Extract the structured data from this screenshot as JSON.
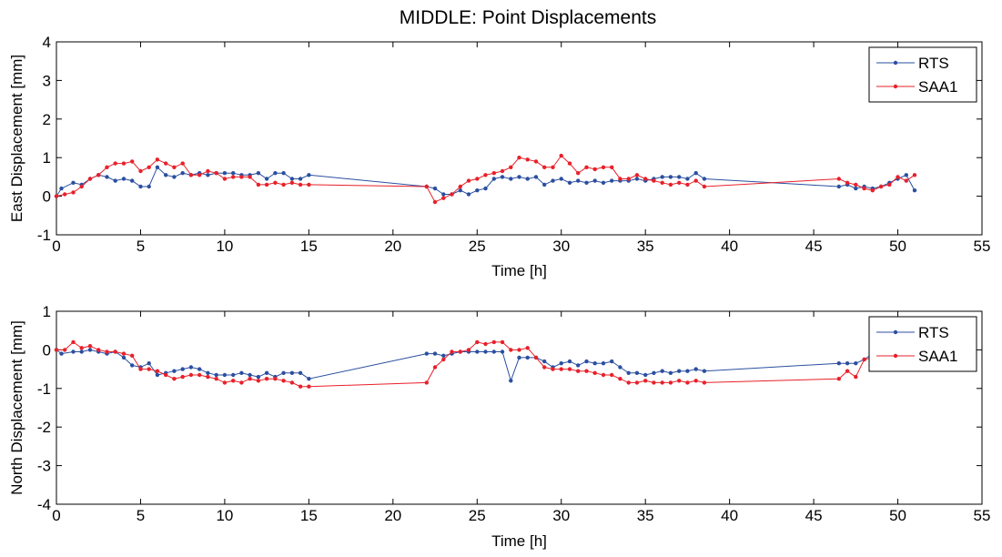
{
  "title": "MIDDLE: Point Displacements",
  "colors": {
    "RTS": "#2b4fa0",
    "SAA1": "#e8202a"
  },
  "chart_data": [
    {
      "type": "line",
      "xlabel": "Time [h]",
      "ylabel": "East Displacement [mm]",
      "xlim": [
        0,
        55
      ],
      "ylim": [
        -1,
        4
      ],
      "xticks": [
        "0",
        "5",
        "10",
        "15",
        "20",
        "25",
        "30",
        "35",
        "40",
        "45",
        "50",
        "55"
      ],
      "yticks": [
        "-1",
        "0",
        "1",
        "2",
        "3",
        "4"
      ],
      "grid": false,
      "legend_position": "top-right",
      "series": [
        {
          "name": "RTS",
          "x": [
            0,
            0.3,
            1,
            1.5,
            2,
            2.5,
            3,
            3.5,
            4,
            4.5,
            5,
            5.5,
            6,
            6.5,
            7,
            7.5,
            8,
            8.5,
            9,
            9.5,
            10,
            10.5,
            11,
            11.5,
            12,
            12.5,
            13,
            13.5,
            14,
            14.5,
            15,
            22,
            22.5,
            23,
            23.5,
            24,
            24.5,
            25,
            25.5,
            26,
            26.5,
            27,
            27.5,
            28,
            28.5,
            29,
            29.5,
            30,
            30.5,
            31,
            31.5,
            32,
            32.5,
            33,
            33.5,
            34,
            34.5,
            35,
            35.5,
            36,
            36.5,
            37,
            37.5,
            38,
            38.5,
            46.5,
            47,
            47.5,
            48,
            48.5,
            49,
            49.5,
            50,
            50.5,
            51
          ],
          "y": [
            0,
            0.2,
            0.35,
            0.3,
            0.45,
            0.55,
            0.5,
            0.4,
            0.45,
            0.4,
            0.25,
            0.25,
            0.75,
            0.55,
            0.5,
            0.6,
            0.55,
            0.6,
            0.55,
            0.6,
            0.6,
            0.6,
            0.55,
            0.55,
            0.6,
            0.45,
            0.6,
            0.6,
            0.45,
            0.45,
            0.55,
            0.25,
            0.2,
            0.05,
            0.05,
            0.15,
            0.05,
            0.15,
            0.2,
            0.45,
            0.5,
            0.45,
            0.5,
            0.45,
            0.5,
            0.3,
            0.4,
            0.45,
            0.35,
            0.4,
            0.35,
            0.4,
            0.35,
            0.4,
            0.4,
            0.4,
            0.45,
            0.4,
            0.45,
            0.5,
            0.5,
            0.5,
            0.45,
            0.6,
            0.45,
            0.25,
            0.3,
            0.2,
            0.25,
            0.2,
            0.25,
            0.35,
            0.45,
            0.55,
            0.15
          ]
        },
        {
          "name": "SAA1",
          "x": [
            0,
            0.5,
            1,
            1.5,
            2,
            2.5,
            3,
            3.5,
            4,
            4.5,
            5,
            5.5,
            6,
            6.5,
            7,
            7.5,
            8,
            8.5,
            9,
            9.5,
            10,
            10.5,
            11,
            11.5,
            12,
            12.5,
            13,
            13.5,
            14,
            14.5,
            15,
            22,
            22.5,
            23,
            23.5,
            24,
            24.5,
            25,
            25.5,
            26,
            26.5,
            27,
            27.5,
            28,
            28.5,
            29,
            29.5,
            30,
            30.5,
            31,
            31.5,
            32,
            32.5,
            33,
            33.5,
            34,
            34.5,
            35,
            35.5,
            36,
            36.5,
            37,
            37.5,
            38,
            38.5,
            46.5,
            47,
            47.5,
            48,
            48.5,
            49,
            49.5,
            50,
            50.5,
            51
          ],
          "y": [
            0,
            0.05,
            0.1,
            0.25,
            0.45,
            0.55,
            0.75,
            0.85,
            0.85,
            0.9,
            0.65,
            0.75,
            0.95,
            0.85,
            0.75,
            0.85,
            0.55,
            0.55,
            0.65,
            0.6,
            0.45,
            0.5,
            0.5,
            0.5,
            0.3,
            0.3,
            0.35,
            0.3,
            0.35,
            0.3,
            0.3,
            0.25,
            -0.15,
            -0.05,
            0.05,
            0.25,
            0.4,
            0.45,
            0.55,
            0.6,
            0.65,
            0.75,
            1.0,
            0.95,
            0.9,
            0.75,
            0.75,
            1.05,
            0.85,
            0.6,
            0.75,
            0.7,
            0.75,
            0.75,
            0.45,
            0.45,
            0.55,
            0.45,
            0.4,
            0.35,
            0.3,
            0.35,
            0.3,
            0.4,
            0.25,
            0.45,
            0.35,
            0.3,
            0.2,
            0.15,
            0.25,
            0.3,
            0.5,
            0.4,
            0.55
          ]
        }
      ]
    },
    {
      "type": "line",
      "xlabel": "Time [h]",
      "ylabel": "North Displacement [mm]",
      "xlim": [
        0,
        55
      ],
      "ylim": [
        -4,
        1
      ],
      "xticks": [
        "0",
        "5",
        "10",
        "15",
        "20",
        "25",
        "30",
        "35",
        "40",
        "45",
        "50",
        "55"
      ],
      "yticks": [
        "-4",
        "-3",
        "-2",
        "-1",
        "0",
        "1"
      ],
      "grid": false,
      "legend_position": "top-right",
      "series": [
        {
          "name": "RTS",
          "x": [
            0,
            0.3,
            1,
            1.5,
            2,
            2.5,
            3,
            3.5,
            4,
            4.5,
            5,
            5.5,
            6,
            6.5,
            7,
            7.5,
            8,
            8.5,
            9,
            9.5,
            10,
            10.5,
            11,
            11.5,
            12,
            12.5,
            13,
            13.5,
            14,
            14.5,
            15,
            22,
            22.5,
            23,
            23.5,
            24,
            24.5,
            25,
            25.5,
            26,
            26.5,
            27,
            27.5,
            28,
            28.5,
            29,
            29.5,
            30,
            30.5,
            31,
            31.5,
            32,
            32.5,
            33,
            33.5,
            34,
            34.5,
            35,
            35.5,
            36,
            36.5,
            37,
            37.5,
            38,
            38.5,
            46.5,
            47,
            47.5,
            48,
            48.5
          ],
          "y": [
            0,
            -0.1,
            -0.05,
            -0.05,
            0,
            -0.05,
            -0.1,
            -0.05,
            -0.2,
            -0.4,
            -0.45,
            -0.35,
            -0.65,
            -0.6,
            -0.55,
            -0.5,
            -0.45,
            -0.5,
            -0.6,
            -0.65,
            -0.65,
            -0.65,
            -0.6,
            -0.65,
            -0.7,
            -0.6,
            -0.7,
            -0.6,
            -0.6,
            -0.6,
            -0.75,
            -0.1,
            -0.1,
            -0.15,
            -0.1,
            -0.05,
            -0.05,
            -0.05,
            -0.05,
            -0.05,
            -0.05,
            -0.8,
            -0.2,
            -0.2,
            -0.2,
            -0.3,
            -0.45,
            -0.35,
            -0.3,
            -0.4,
            -0.3,
            -0.35,
            -0.35,
            -0.3,
            -0.45,
            -0.6,
            -0.6,
            -0.65,
            -0.6,
            -0.55,
            -0.6,
            -0.55,
            -0.55,
            -0.5,
            -0.55,
            -0.35,
            -0.35,
            -0.35,
            -0.25,
            -0.1
          ]
        },
        {
          "name": "SAA1",
          "x": [
            0,
            0.5,
            1,
            1.5,
            2,
            2.5,
            3,
            3.5,
            4,
            4.5,
            5,
            5.5,
            6,
            6.5,
            7,
            7.5,
            8,
            8.5,
            9,
            9.5,
            10,
            10.5,
            11,
            11.5,
            12,
            12.5,
            13,
            13.5,
            14,
            14.5,
            15,
            22,
            22.5,
            23,
            23.5,
            24,
            24.5,
            25,
            25.5,
            26,
            26.5,
            27,
            27.5,
            28,
            28.5,
            29,
            29.5,
            30,
            30.5,
            31,
            31.5,
            32,
            32.5,
            33,
            33.5,
            34,
            34.5,
            35,
            35.5,
            36,
            36.5,
            37,
            37.5,
            38,
            38.5,
            46.5,
            47,
            47.5,
            48,
            48.5
          ],
          "y": [
            0,
            0,
            0.2,
            0.05,
            0.1,
            0,
            -0.05,
            -0.05,
            -0.1,
            -0.15,
            -0.5,
            -0.5,
            -0.55,
            -0.65,
            -0.75,
            -0.7,
            -0.65,
            -0.65,
            -0.7,
            -0.75,
            -0.85,
            -0.8,
            -0.85,
            -0.75,
            -0.8,
            -0.75,
            -0.75,
            -0.8,
            -0.85,
            -0.95,
            -0.95,
            -0.85,
            -0.45,
            -0.25,
            -0.05,
            -0.05,
            0,
            0.2,
            0.15,
            0.2,
            0.2,
            0,
            0,
            0.05,
            -0.2,
            -0.45,
            -0.5,
            -0.5,
            -0.5,
            -0.55,
            -0.55,
            -0.6,
            -0.65,
            -0.65,
            -0.75,
            -0.85,
            -0.85,
            -0.8,
            -0.85,
            -0.85,
            -0.85,
            -0.8,
            -0.85,
            -0.8,
            -0.85,
            -0.75,
            -0.55,
            -0.7,
            -0.25,
            -0.2
          ]
        }
      ]
    }
  ]
}
